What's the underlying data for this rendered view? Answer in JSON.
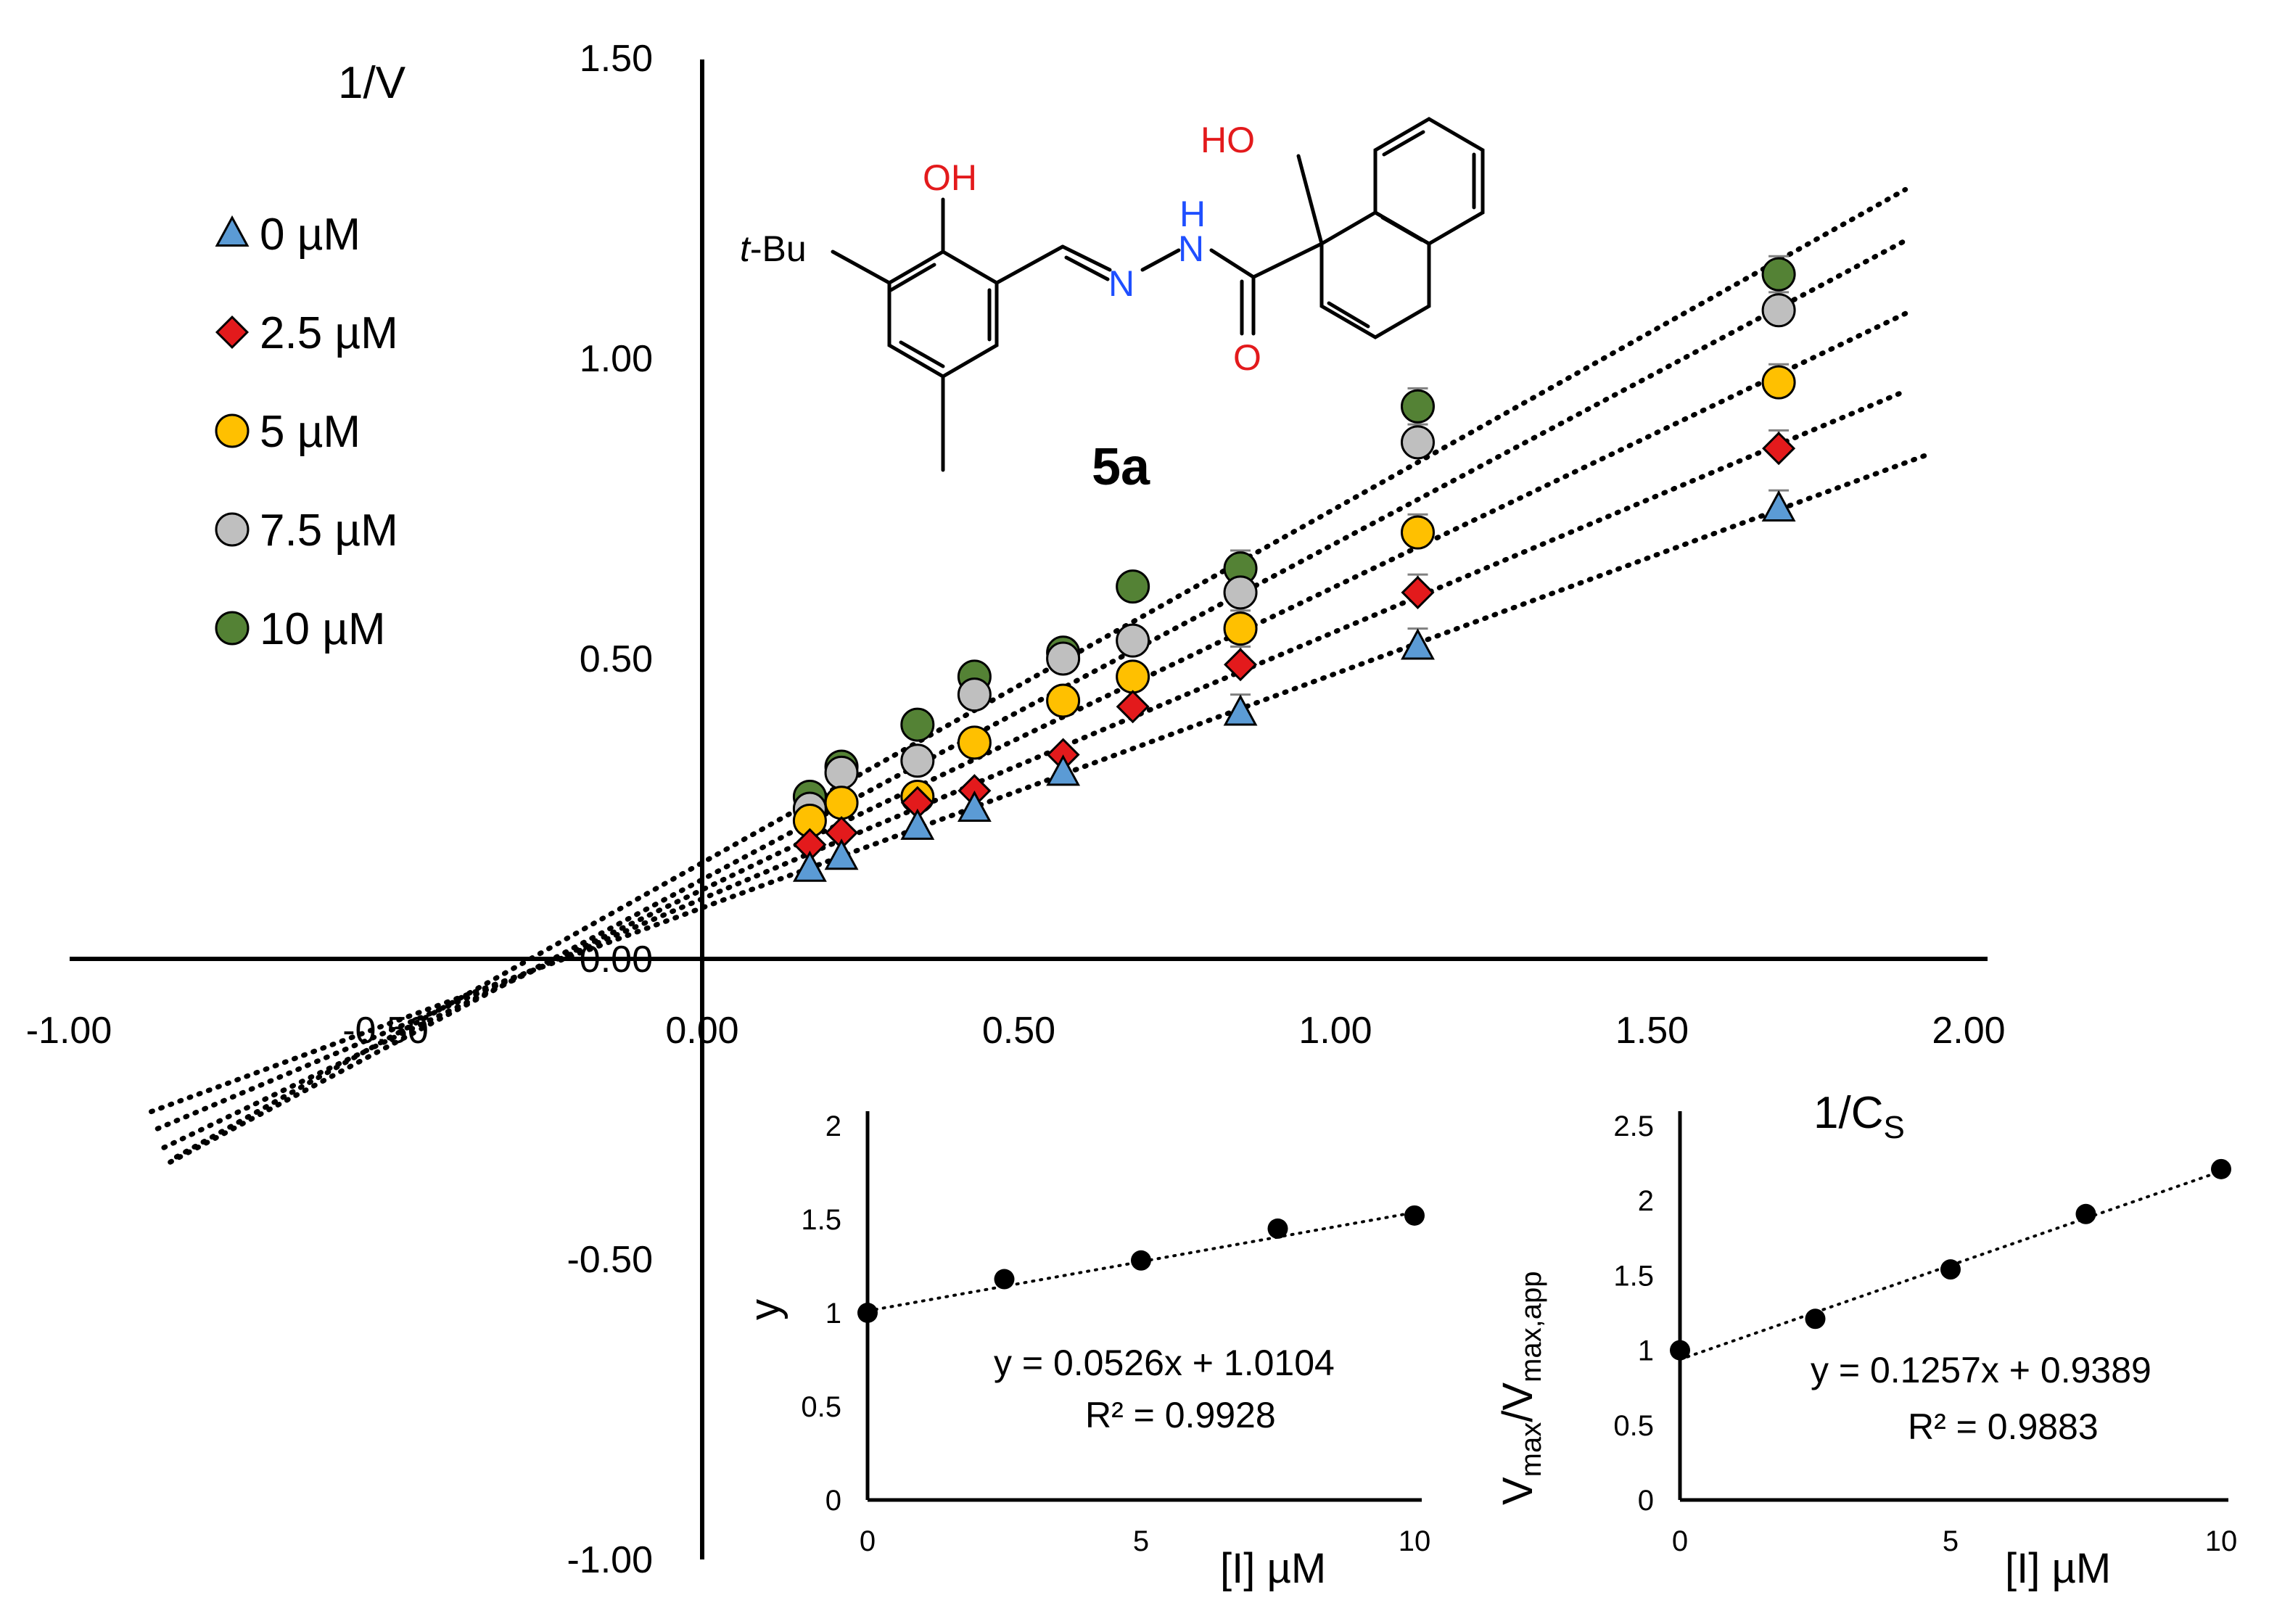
{
  "chart_data": [
    {
      "type": "scatter",
      "title": "",
      "xlabel": "1/C",
      "xlabel_subscript": "S",
      "ylabel": "1/V",
      "xlim": [
        -1.0,
        2.0
      ],
      "ylim": [
        -1.0,
        1.5
      ],
      "x_ticks": [
        "-1.00",
        "-0.50",
        "0.00",
        "0.50",
        "1.00",
        "1.50",
        "2.00"
      ],
      "y_ticks": [
        "-1.00",
        "-0.50",
        "0.00",
        "0.50",
        "1.00",
        "1.50"
      ],
      "x": [
        0.17,
        0.22,
        0.34,
        0.43,
        0.57,
        0.68,
        0.85,
        1.13,
        1.7
      ],
      "trendline_x_range": [
        -0.87,
        1.9
      ],
      "series": [
        {
          "name": "0 µM",
          "marker": "triangle",
          "color": "#5B9BD5",
          "values": [
            0.15,
            0.17,
            0.22,
            0.25,
            0.31,
            null,
            0.41,
            0.52,
            0.75
          ],
          "fit": {
            "slope": 0.39,
            "intercept": 0.085
          }
        },
        {
          "name": "2.5 µM",
          "marker": "diamond",
          "color": "#E31A1C",
          "values": [
            0.19,
            0.21,
            0.26,
            0.28,
            0.34,
            0.42,
            0.49,
            0.61,
            0.85
          ],
          "fit": {
            "slope": 0.445,
            "intercept": 0.1
          }
        },
        {
          "name": "5 µM",
          "marker": "circle",
          "color": "#FFC000",
          "values": [
            0.23,
            0.26,
            0.27,
            0.36,
            0.43,
            0.47,
            0.55,
            0.71,
            0.96
          ],
          "fit": {
            "slope": 0.505,
            "intercept": 0.115
          }
        },
        {
          "name": "7.5 µM",
          "marker": "circle",
          "color": "#BFBFBF",
          "values": [
            0.25,
            0.31,
            0.33,
            0.44,
            0.5,
            0.53,
            0.61,
            0.86,
            1.08
          ],
          "fit": {
            "slope": 0.56,
            "intercept": 0.132
          }
        },
        {
          "name": "10 µM",
          "marker": "circle",
          "color": "#548235",
          "values": [
            0.27,
            0.32,
            0.39,
            0.47,
            0.51,
            0.62,
            0.65,
            0.92,
            1.14
          ],
          "fit": {
            "slope": 0.59,
            "intercept": 0.16
          }
        }
      ]
    },
    {
      "type": "scatter",
      "title": "",
      "xlabel": "[I] µM",
      "ylabel": "y",
      "xlim": [
        0,
        10
      ],
      "ylim": [
        0,
        2
      ],
      "x_ticks": [
        "0",
        "5",
        "10"
      ],
      "y_ticks": [
        "0",
        "0.5",
        "1",
        "1.5",
        "2"
      ],
      "x": [
        0,
        2.5,
        5,
        7.5,
        10
      ],
      "values": [
        1.0,
        1.18,
        1.28,
        1.45,
        1.52
      ],
      "fit": {
        "slope": 0.0526,
        "intercept": 1.0104
      },
      "equation": "y = 0.0526x + 1.0104",
      "r2": "R² = 0.9928"
    },
    {
      "type": "scatter",
      "title": "",
      "xlabel": "[I] µM",
      "ylabel": "V",
      "ylabel_parts": [
        "V",
        "max",
        "/V",
        "max,app"
      ],
      "xlim": [
        0,
        10
      ],
      "ylim": [
        0,
        2.5
      ],
      "x_ticks": [
        "0",
        "5",
        "10"
      ],
      "y_ticks": [
        "0",
        "0.5",
        "1",
        "1.5",
        "2",
        "2.5"
      ],
      "x": [
        0,
        2.5,
        5,
        7.5,
        10
      ],
      "values": [
        1.0,
        1.21,
        1.54,
        1.91,
        2.21
      ],
      "fit": {
        "slope": 0.1257,
        "intercept": 0.9389
      },
      "equation": "y = 0.1257x + 0.9389",
      "r2": "R² = 0.9883"
    }
  ],
  "structure": {
    "compound_id": "5a",
    "labels": {
      "oh_phenol": "OH",
      "ho_naphthol": "HO",
      "tbu_t": "t",
      "tbu_rest": "-Bu",
      "nh_h": "H",
      "n1": "N",
      "n2": "N",
      "o": "O"
    },
    "colors": {
      "oxygen": "#E31A1C",
      "nitrogen": "#1F4FFF",
      "carbon": "#000000"
    }
  }
}
